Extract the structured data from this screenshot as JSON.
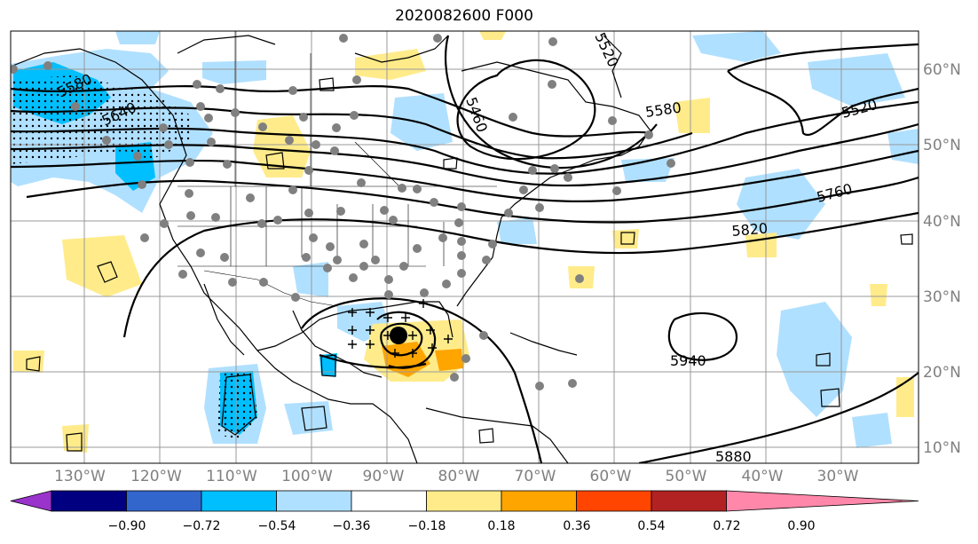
{
  "title": "2020082600 F000",
  "map": {
    "lon_labels": [
      "130°W",
      "120°W",
      "110°W",
      "100°W",
      "90°W",
      "80°W",
      "70°W",
      "60°W",
      "50°W",
      "40°W",
      "30°W"
    ],
    "lat_labels": [
      "60°N",
      "50°N",
      "40°N",
      "30°N",
      "20°N",
      "10°N"
    ],
    "contour_labels": [
      "5580",
      "5640",
      "5460",
      "5520",
      "5580",
      "5520",
      "5760",
      "5820",
      "5940",
      "5880"
    ]
  },
  "colorbar": {
    "colors": [
      "#9933cc",
      "#000080",
      "#3366cc",
      "#00bfff",
      "#b0e0ff",
      "#ffffff",
      "#ffeb8a",
      "#ffa500",
      "#ff4500",
      "#b22222",
      "#ff88aa"
    ],
    "ticks": [
      "−0.90",
      "−0.72",
      "−0.54",
      "−0.36",
      "−0.18",
      "0.18",
      "0.36",
      "0.54",
      "0.72",
      "0.90"
    ]
  }
}
